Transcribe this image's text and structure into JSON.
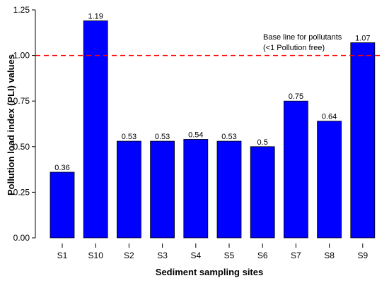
{
  "chart_data": {
    "type": "bar",
    "title": "",
    "xlabel": "Sediment sampling sites",
    "ylabel": "Pollution load index (PLI) values",
    "categories": [
      "S1",
      "S10",
      "S2",
      "S3",
      "S4",
      "S5",
      "S6",
      "S7",
      "S8",
      "S9"
    ],
    "values": [
      0.36,
      1.19,
      0.53,
      0.53,
      0.54,
      0.53,
      0.5,
      0.75,
      0.64,
      1.07
    ],
    "data_labels": [
      "0.36",
      "1.19",
      "0.53",
      "0.53",
      "0.54",
      "0.53",
      "0.5",
      "0.75",
      "0.64",
      "1.07"
    ],
    "ylim": [
      0,
      1.25
    ],
    "yticks": [
      "0.00",
      "0.25",
      "0.50",
      "0.75",
      "1.00",
      "1.25"
    ],
    "grid": false,
    "bar_color": "#0000ff",
    "reference_line": {
      "value": 1.0,
      "color": "#ff0000",
      "style": "dashed",
      "label_line1": "Base line for pollutants",
      "label_line2": "(<1 Pollution free)"
    }
  }
}
